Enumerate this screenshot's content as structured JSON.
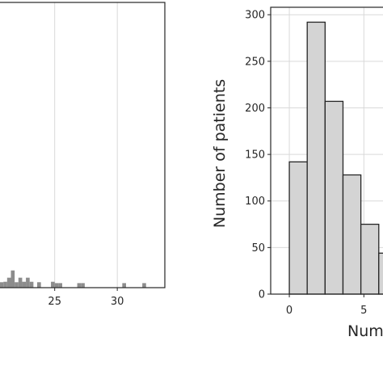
{
  "colors": {
    "left_bar_fill": "#8c8c8c",
    "right_bar_fill": "#d4d4d4",
    "right_bar_edge": "#262626",
    "grid": "#d9d9d9",
    "axis": "#262626"
  },
  "chart_data": [
    {
      "type": "bar",
      "title": "",
      "xlabel": "",
      "ylabel": "",
      "grid": true,
      "xlim": [
        20.5,
        33.8
      ],
      "ylim": [
        0,
        63
      ],
      "x_ticks": [
        25,
        30
      ],
      "x_tick_labels": [
        "25",
        "30"
      ],
      "bin_width": 0.3,
      "bins": [
        {
          "x": 20.6,
          "value": 1.2
        },
        {
          "x": 20.9,
          "value": 1.3
        },
        {
          "x": 21.2,
          "value": 2.2
        },
        {
          "x": 21.5,
          "value": 3.8
        },
        {
          "x": 21.8,
          "value": 1.2
        },
        {
          "x": 22.1,
          "value": 2.2
        },
        {
          "x": 22.4,
          "value": 1.3
        },
        {
          "x": 22.7,
          "value": 2.2
        },
        {
          "x": 23.0,
          "value": 1.3
        },
        {
          "x": 23.6,
          "value": 1.2
        },
        {
          "x": 24.7,
          "value": 1.3
        },
        {
          "x": 25.0,
          "value": 1.0
        },
        {
          "x": 25.3,
          "value": 1.0
        },
        {
          "x": 26.8,
          "value": 1.0
        },
        {
          "x": 27.1,
          "value": 1.0
        },
        {
          "x": 30.4,
          "value": 1.0
        },
        {
          "x": 32.0,
          "value": 1.0
        }
      ]
    },
    {
      "type": "bar",
      "title": "",
      "xlabel": "Num",
      "ylabel": "Number of patients",
      "grid": true,
      "xlim": [
        -1.25,
        6.5
      ],
      "ylim": [
        0,
        308
      ],
      "x_ticks": [
        0,
        5
      ],
      "x_tick_labels": [
        "0",
        "5"
      ],
      "y_ticks": [
        0,
        50,
        100,
        150,
        200,
        250,
        300
      ],
      "y_tick_labels": [
        "0",
        "50",
        "100",
        "150",
        "200",
        "250",
        "300"
      ],
      "bin_width": 1.2,
      "bins": [
        {
          "x": 0.0,
          "value": 142
        },
        {
          "x": 1.2,
          "value": 292
        },
        {
          "x": 2.4,
          "value": 207
        },
        {
          "x": 3.6,
          "value": 128
        },
        {
          "x": 4.8,
          "value": 75
        },
        {
          "x": 6.0,
          "value": 44
        }
      ]
    }
  ]
}
